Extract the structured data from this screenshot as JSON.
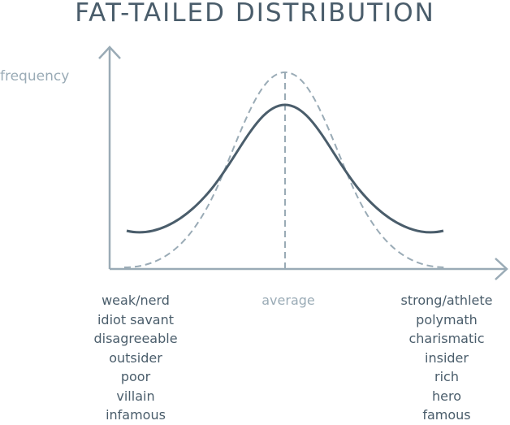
{
  "title": "FAT-TAILED DISTRIBUTION",
  "y_axis_label": "frequency",
  "center_label": "average",
  "left_labels": [
    "weak/nerd",
    "idiot savant",
    "disagreeable",
    "outsider",
    "poor",
    "villain",
    "infamous"
  ],
  "right_labels": [
    "strong/athlete",
    "polymath",
    "charismatic",
    "insider",
    "rich",
    "hero",
    "famous"
  ],
  "colors": {
    "axis": "#9aabb6",
    "solid_curve": "#4a5d6b",
    "dashed_curve": "#9aabb6",
    "title": "#4a5d6b"
  }
}
